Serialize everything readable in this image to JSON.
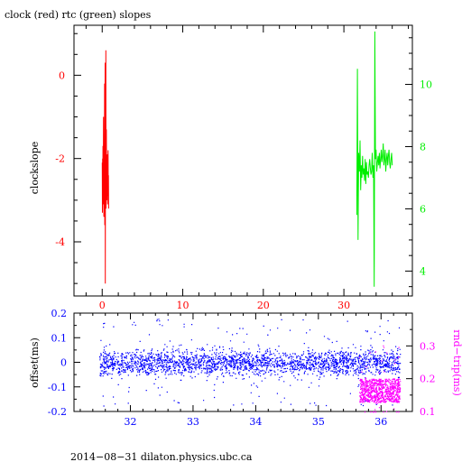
{
  "chart_data": [
    {
      "id": "slopes",
      "type": "line",
      "title": "clock (red) rtc (green) slopes",
      "xlabel": "",
      "ylabel": "clockslope",
      "xlim": [
        -3.5,
        38.5
      ],
      "ylim": [
        -5.3,
        1.2
      ],
      "x_ticks": [
        0,
        10,
        20,
        30
      ],
      "y_ticks": [
        0,
        -2,
        -4
      ],
      "y2lim": [
        3.2,
        11.9
      ],
      "y2_ticks": [
        10,
        8,
        6,
        4
      ],
      "series": [
        {
          "axis": "left",
          "color": "#ff0000",
          "x_start": 0.0,
          "x_end": 0.8,
          "values": [
            -2.1,
            -3.3,
            -2.0,
            -2.8,
            -1.7,
            -3.1,
            -2.3,
            -1.0,
            -2.6,
            -3.4,
            -2.2,
            -1.8,
            -2.9,
            -0.2,
            -3.6,
            -2.4,
            0.3,
            -5.0,
            -1.6,
            -2.7,
            0.6,
            -3.2,
            -2.0,
            -1.3,
            -2.8,
            -3.0,
            -2.2,
            -1.9,
            -2.6,
            -3.1,
            -2.3,
            -2.1,
            -1.8,
            -2.9,
            -2.4,
            -3.2
          ]
        },
        {
          "axis": "right",
          "color": "#00ee00",
          "x_start": 31.6,
          "x_end": 36.0,
          "values": [
            5.8,
            10.5,
            5.0,
            7.8,
            7.2,
            8.2,
            6.6,
            7.4,
            7.0,
            7.7,
            7.1,
            7.3,
            6.9,
            7.6,
            6.8,
            7.5,
            7.1,
            7.2,
            7.0,
            7.4,
            7.6,
            7.3,
            7.1,
            7.2,
            7.8,
            7.0,
            7.4,
            3.5,
            11.7,
            7.6,
            7.9,
            7.2,
            7.5,
            7.7,
            7.4,
            7.8,
            7.3,
            7.6,
            7.9,
            7.5,
            7.7,
            8.1,
            7.4,
            7.6,
            7.9,
            7.2,
            7.6,
            7.8,
            7.4,
            7.7,
            7.9,
            7.5,
            7.3,
            7.6,
            7.8,
            7.4
          ]
        }
      ]
    },
    {
      "id": "offset",
      "type": "scatter",
      "title": "",
      "xlabel": "",
      "ylabel": "offset(ms)",
      "y2label": "rnd−trip(ms)",
      "xlim": [
        31.1,
        36.5
      ],
      "ylim": [
        -0.2,
        0.2
      ],
      "x_ticks": [
        32,
        33,
        34,
        35,
        36
      ],
      "y_ticks": [
        "0.2",
        "0.1",
        "0",
        "-0.1",
        "-0.2"
      ],
      "y2lim": [
        0.1,
        0.4
      ],
      "y2_ticks": [
        "0.3",
        "0.2",
        "0.1"
      ],
      "series": [
        {
          "axis": "left",
          "color": "#0000ff",
          "x_range": [
            31.5,
            36.3
          ],
          "center": 0.0,
          "spread": 0.025,
          "outlier_spread": 0.18
        },
        {
          "axis": "right",
          "color": "#ff00ff",
          "x_range": [
            35.65,
            36.3
          ],
          "center": 0.165,
          "spread": 0.04
        }
      ]
    }
  ],
  "footer": "2014−08−31 dilaton.physics.ubc.ca",
  "colors": {
    "clock": "#ff0000",
    "rtc": "#00ee00",
    "offset": "#0000ff",
    "roundtrip": "#ff00ff",
    "axes": "#000000"
  }
}
